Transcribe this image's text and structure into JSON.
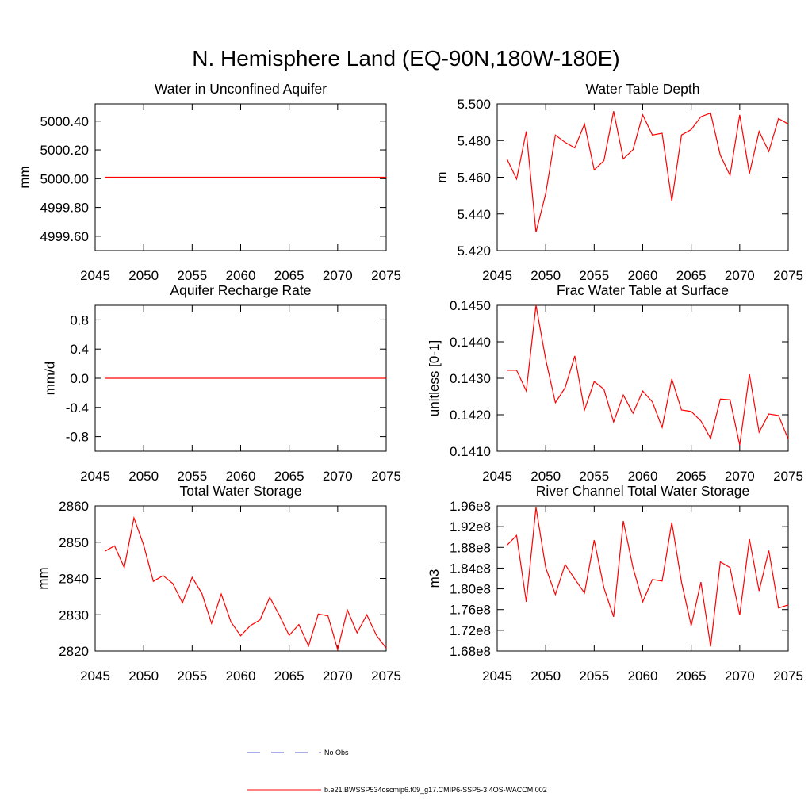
{
  "title": "N. Hemisphere Land (EQ-90N,180W-180E)",
  "legend": [
    {
      "name": "No Obs",
      "color": "#5a5ad6",
      "dashed": true
    },
    {
      "name": "b.e21.BWSSP534oscmip6.f09_g17.CMIP6-SSP5-3.4OS-WACCM.002",
      "color": "#ff0000",
      "dashed": false
    }
  ],
  "chart_data": [
    {
      "type": "line",
      "title": "Water in Unconfined Aquifer",
      "y_label": "mm",
      "x": [
        2046,
        2047,
        2048,
        2049,
        2050,
        2051,
        2052,
        2053,
        2054,
        2055,
        2056,
        2057,
        2058,
        2059,
        2060,
        2061,
        2062,
        2063,
        2064,
        2065,
        2066,
        2067,
        2068,
        2069,
        2070,
        2071,
        2072,
        2073,
        2074,
        2075
      ],
      "xlim": [
        2045,
        2075
      ],
      "xticks": [
        2045,
        2050,
        2055,
        2060,
        2065,
        2070,
        2075
      ],
      "ylim": [
        4999.5,
        5000.52
      ],
      "yticks": [
        {
          "value": 5000.4,
          "label": "5000.40"
        },
        {
          "value": 5000.2,
          "label": "5000.20"
        },
        {
          "value": 5000.0,
          "label": "5000.00"
        },
        {
          "value": 4999.8,
          "label": "4999.80"
        },
        {
          "value": 4999.6,
          "label": "4999.60"
        }
      ],
      "series": [
        {
          "color": "#ff0000",
          "values": [
            5000.01,
            5000.01,
            5000.01,
            5000.01,
            5000.01,
            5000.01,
            5000.01,
            5000.01,
            5000.01,
            5000.01,
            5000.01,
            5000.01,
            5000.01,
            5000.01,
            5000.01,
            5000.01,
            5000.01,
            5000.01,
            5000.01,
            5000.01,
            5000.01,
            5000.01,
            5000.01,
            5000.01,
            5000.01,
            5000.01,
            5000.01,
            5000.01,
            5000.01,
            5000.01
          ]
        }
      ]
    },
    {
      "type": "line",
      "title": "Water Table Depth",
      "y_label": "m",
      "x": [
        2046,
        2047,
        2048,
        2049,
        2050,
        2051,
        2052,
        2053,
        2054,
        2055,
        2056,
        2057,
        2058,
        2059,
        2060,
        2061,
        2062,
        2063,
        2064,
        2065,
        2066,
        2067,
        2068,
        2069,
        2070,
        2071,
        2072,
        2073,
        2074,
        2075
      ],
      "xlim": [
        2045,
        2075
      ],
      "xticks": [
        2045,
        2050,
        2055,
        2060,
        2065,
        2070,
        2075
      ],
      "ylim": [
        5.42,
        5.5
      ],
      "yticks": [
        {
          "value": 5.5,
          "label": "5.500"
        },
        {
          "value": 5.48,
          "label": "5.480"
        },
        {
          "value": 5.46,
          "label": "5.460"
        },
        {
          "value": 5.44,
          "label": "5.440"
        },
        {
          "value": 5.42,
          "label": "5.420"
        }
      ],
      "series": [
        {
          "color": "#ff0000",
          "values": [
            5.47,
            5.459,
            5.485,
            5.43,
            5.451,
            5.483,
            5.479,
            5.476,
            5.489,
            5.464,
            5.469,
            5.496,
            5.47,
            5.475,
            5.494,
            5.483,
            5.484,
            5.447,
            5.483,
            5.486,
            5.493,
            5.495,
            5.472,
            5.461,
            5.494,
            5.462,
            5.485,
            5.474,
            5.492,
            5.489
          ]
        }
      ]
    },
    {
      "type": "line",
      "title": "Aquifer Recharge Rate",
      "y_label": "mm/d",
      "x": [
        2046,
        2047,
        2048,
        2049,
        2050,
        2051,
        2052,
        2053,
        2054,
        2055,
        2056,
        2057,
        2058,
        2059,
        2060,
        2061,
        2062,
        2063,
        2064,
        2065,
        2066,
        2067,
        2068,
        2069,
        2070,
        2071,
        2072,
        2073,
        2074,
        2075
      ],
      "xlim": [
        2045,
        2075
      ],
      "xticks": [
        2045,
        2050,
        2055,
        2060,
        2065,
        2070,
        2075
      ],
      "ylim": [
        -1,
        1
      ],
      "yticks": [
        0.8,
        0.4,
        {
          "value": 0,
          "label": "0.0"
        },
        -0.4,
        -0.8
      ],
      "series": [
        {
          "color": "#ff0000",
          "values": [
            0,
            0,
            0,
            0,
            0,
            0,
            0,
            0,
            0,
            0,
            0,
            0,
            0,
            0,
            0,
            0,
            0,
            0,
            0,
            0,
            0,
            0,
            0,
            0,
            0,
            0,
            0,
            0,
            0,
            0
          ]
        }
      ]
    },
    {
      "type": "line",
      "title": "Frac Water Table at Surface",
      "y_label": "unitless [0-1]",
      "x": [
        2046,
        2047,
        2048,
        2049,
        2050,
        2051,
        2052,
        2053,
        2054,
        2055,
        2056,
        2057,
        2058,
        2059,
        2060,
        2061,
        2062,
        2063,
        2064,
        2065,
        2066,
        2067,
        2068,
        2069,
        2070,
        2071,
        2072,
        2073,
        2074,
        2075
      ],
      "xlim": [
        2045,
        2075
      ],
      "xticks": [
        2045,
        2050,
        2055,
        2060,
        2065,
        2070,
        2075
      ],
      "ylim": [
        0.141,
        0.145
      ],
      "yticks": [
        {
          "value": 0.145,
          "label": "0.1450"
        },
        {
          "value": 0.144,
          "label": "0.1440"
        },
        {
          "value": 0.143,
          "label": "0.1430"
        },
        {
          "value": 0.142,
          "label": "0.1420"
        },
        {
          "value": 0.141,
          "label": "0.1410"
        }
      ],
      "series": [
        {
          "color": "#ff0000",
          "values": [
            0.14322,
            0.14322,
            0.14265,
            0.145,
            0.14352,
            0.14233,
            0.14274,
            0.14361,
            0.14213,
            0.14291,
            0.1427,
            0.1418,
            0.14254,
            0.14204,
            0.14265,
            0.14235,
            0.14165,
            0.14298,
            0.14213,
            0.14209,
            0.14183,
            0.14135,
            0.14243,
            0.14241,
            0.14117,
            0.14311,
            0.14152,
            0.14202,
            0.14198,
            0.14133
          ]
        }
      ]
    },
    {
      "type": "line",
      "title": "Total Water Storage",
      "y_label": "mm",
      "x": [
        2046,
        2047,
        2048,
        2049,
        2050,
        2051,
        2052,
        2053,
        2054,
        2055,
        2056,
        2057,
        2058,
        2059,
        2060,
        2061,
        2062,
        2063,
        2064,
        2065,
        2066,
        2067,
        2068,
        2069,
        2070,
        2071,
        2072,
        2073,
        2074,
        2075
      ],
      "xlim": [
        2045,
        2075
      ],
      "xticks": [
        2045,
        2050,
        2055,
        2060,
        2065,
        2070,
        2075
      ],
      "ylim": [
        2820,
        2860
      ],
      "yticks": [
        2860,
        2850,
        2840,
        2830,
        2820
      ],
      "series": [
        {
          "color": "#ff0000",
          "values": [
            2847.5,
            2849.0,
            2843.0,
            2856.7,
            2849.2,
            2839.2,
            2840.8,
            2838.6,
            2833.3,
            2840.3,
            2835.9,
            2827.6,
            2835.7,
            2828.0,
            2824.2,
            2827.0,
            2828.6,
            2834.8,
            2829.8,
            2824.3,
            2827.3,
            2821.4,
            2830.2,
            2829.7,
            2820.4,
            2831.3,
            2825.0,
            2830.0,
            2824.3,
            2820.8
          ]
        }
      ]
    },
    {
      "type": "line",
      "title": "River Channel Total Water Storage",
      "y_label": "m3",
      "x": [
        2046,
        2047,
        2048,
        2049,
        2050,
        2051,
        2052,
        2053,
        2054,
        2055,
        2056,
        2057,
        2058,
        2059,
        2060,
        2061,
        2062,
        2063,
        2064,
        2065,
        2066,
        2067,
        2068,
        2069,
        2070,
        2071,
        2072,
        2073,
        2074,
        2075
      ],
      "xlim": [
        2045,
        2075
      ],
      "xticks": [
        2045,
        2050,
        2055,
        2060,
        2065,
        2070,
        2075
      ],
      "ylim": [
        168000000,
        196000000
      ],
      "yticks": [
        {
          "value": 196000000,
          "label": "1.96e8"
        },
        {
          "value": 192000000,
          "label": "1.92e8"
        },
        {
          "value": 188000000,
          "label": "1.88e8"
        },
        {
          "value": 184000000,
          "label": "1.84e8"
        },
        {
          "value": 180000000,
          "label": "1.80e8"
        },
        {
          "value": 176000000,
          "label": "1.76e8"
        },
        {
          "value": 172000000,
          "label": "1.72e8"
        },
        {
          "value": 168000000,
          "label": "1.68e8"
        }
      ],
      "series": [
        {
          "color": "#ff0000",
          "values": [
            188400000,
            190300000,
            177500000,
            195700000,
            184100000,
            178900000,
            184700000,
            181900000,
            179200000,
            189400000,
            180200000,
            174600000,
            193100000,
            184100000,
            177500000,
            181800000,
            181500000,
            192800000,
            181300000,
            172900000,
            181300000,
            168900000,
            185200000,
            184100000,
            174900000,
            189600000,
            179600000,
            187400000,
            176300000,
            176900000
          ]
        }
      ]
    }
  ]
}
